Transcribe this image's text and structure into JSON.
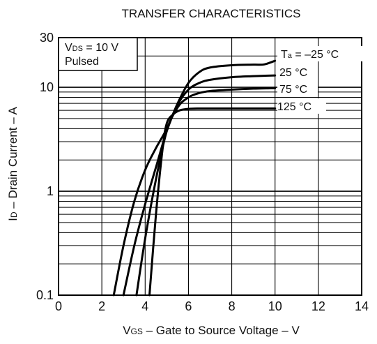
{
  "chart_data": {
    "type": "line",
    "title": "TRANSFER CHARACTERISTICS",
    "xlabel": "VGS – Gate to Source Voltage – V",
    "xlabel_main": "V",
    "xlabel_sub": "GS",
    "xlabel_rest": " – Gate to Source Voltage – V",
    "ylabel": "ID – Drain Current – A",
    "ylabel_main": "I",
    "ylabel_sub": "D",
    "ylabel_rest": " – Drain Current – A",
    "xlim": [
      0,
      14
    ],
    "ylim": [
      0.1,
      30
    ],
    "yscale": "log",
    "grid": true,
    "xticks": [
      0,
      2,
      4,
      6,
      8,
      10,
      12,
      14
    ],
    "xtick_labels": [
      "0",
      "2",
      "4",
      "6",
      "8",
      "10",
      "12",
      "14"
    ],
    "yticks": [
      0.1,
      1,
      10,
      30
    ],
    "ytick_labels": [
      "0.1",
      "1",
      "10",
      "30"
    ],
    "condition_line1_main": "V",
    "condition_line1_sub": "DS",
    "condition_line1_rest": " = 10 V",
    "condition_line2": "Pulsed",
    "series": [
      {
        "name": "Ta = –25 °C",
        "label_main": "T",
        "label_sub": "a",
        "label_rest": " = –25 °C",
        "x": [
          2.55,
          3.0,
          3.5,
          4.0,
          4.5,
          5.0,
          5.5,
          6.0,
          6.5,
          7.0,
          8.0,
          9.0,
          9.5,
          10.0
        ],
        "y": [
          0.1,
          0.3,
          0.8,
          1.6,
          2.6,
          4.0,
          7.0,
          11.0,
          14.0,
          15.5,
          16.3,
          16.5,
          16.6,
          18.0
        ]
      },
      {
        "name": "25 °C",
        "x": [
          3.0,
          3.5,
          4.0,
          4.5,
          5.0,
          5.5,
          6.0,
          6.5,
          7.0,
          8.0,
          9.0,
          10.0
        ],
        "y": [
          0.1,
          0.3,
          0.75,
          1.7,
          3.8,
          6.8,
          9.5,
          11.0,
          11.8,
          12.5,
          12.8,
          13.0
        ]
      },
      {
        "name": "75 °C",
        "x": [
          3.6,
          4.0,
          4.5,
          5.0,
          5.5,
          6.0,
          6.5,
          7.0,
          8.0,
          9.0,
          10.0
        ],
        "y": [
          0.1,
          0.35,
          1.3,
          3.8,
          6.4,
          8.0,
          8.8,
          9.2,
          9.5,
          9.7,
          9.8
        ]
      },
      {
        "name": "125 °C",
        "x": [
          4.2,
          4.5,
          4.8,
          5.0,
          5.3,
          5.6,
          6.0,
          6.5,
          7.0,
          8.0,
          10.0
        ],
        "y": [
          0.1,
          0.6,
          2.5,
          4.5,
          5.5,
          6.0,
          6.2,
          6.25,
          6.25,
          6.25,
          6.25
        ]
      }
    ]
  }
}
